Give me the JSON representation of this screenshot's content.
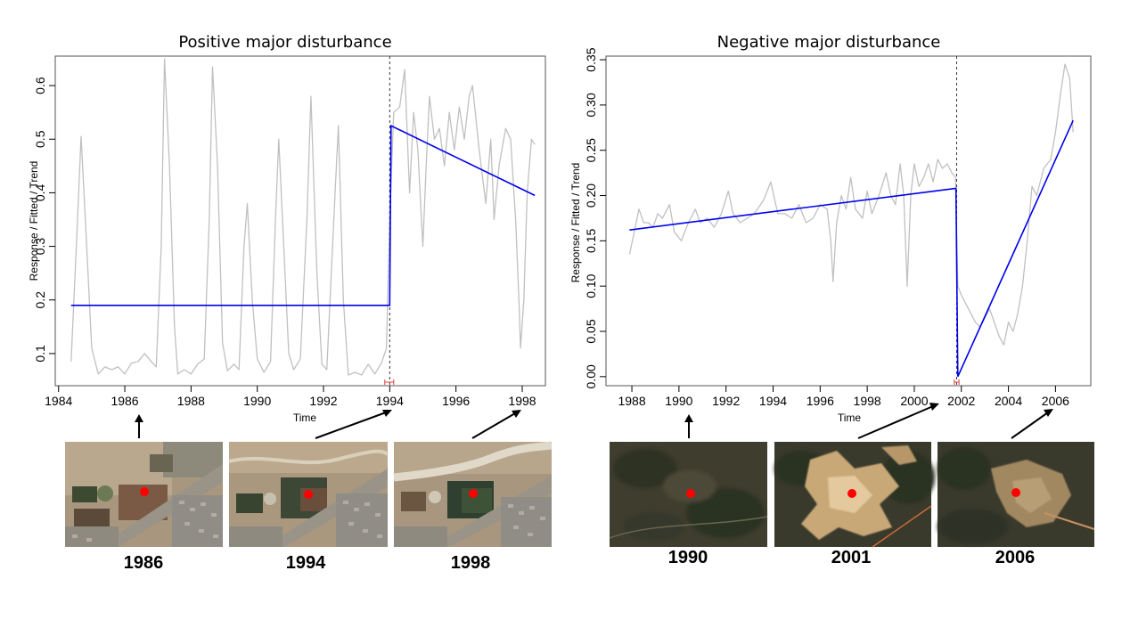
{
  "chart_data": [
    {
      "type": "line",
      "title": "Positive major disturbance",
      "xlabel": "Time",
      "ylabel": "Response / Fitted / Trend",
      "xlim": [
        1983.9,
        1998.7
      ],
      "ylim": [
        0.04,
        0.655
      ],
      "xticks": [
        1984,
        1986,
        1988,
        1990,
        1992,
        1994,
        1996,
        1998
      ],
      "yticks": [
        0.1,
        0.2,
        0.3,
        0.4,
        0.5,
        0.6
      ],
      "ytick_labels": [
        "0.1",
        "0.2",
        "0.3",
        "0.4",
        "0.5",
        "0.6"
      ],
      "breakpoint": 1994.0,
      "breakpoint_ci": [
        1993.85,
        1994.12
      ],
      "series": [
        {
          "role": "response",
          "color": "#c0c0c0",
          "points": [
            [
              1984.38,
              0.085
            ],
            [
              1984.55,
              0.32
            ],
            [
              1984.68,
              0.505
            ],
            [
              1984.85,
              0.3
            ],
            [
              1985.0,
              0.11
            ],
            [
              1985.2,
              0.062
            ],
            [
              1985.4,
              0.075
            ],
            [
              1985.6,
              0.07
            ],
            [
              1985.8,
              0.075
            ],
            [
              1986.0,
              0.062
            ],
            [
              1986.2,
              0.082
            ],
            [
              1986.4,
              0.085
            ],
            [
              1986.6,
              0.1
            ],
            [
              1986.8,
              0.085
            ],
            [
              1986.95,
              0.075
            ],
            [
              1987.1,
              0.3
            ],
            [
              1987.2,
              0.65
            ],
            [
              1987.35,
              0.45
            ],
            [
              1987.5,
              0.15
            ],
            [
              1987.6,
              0.062
            ],
            [
              1987.8,
              0.07
            ],
            [
              1988.0,
              0.062
            ],
            [
              1988.2,
              0.08
            ],
            [
              1988.4,
              0.09
            ],
            [
              1988.55,
              0.35
            ],
            [
              1988.65,
              0.635
            ],
            [
              1988.8,
              0.45
            ],
            [
              1988.95,
              0.12
            ],
            [
              1989.1,
              0.068
            ],
            [
              1989.3,
              0.08
            ],
            [
              1989.45,
              0.07
            ],
            [
              1989.6,
              0.3
            ],
            [
              1989.7,
              0.38
            ],
            [
              1989.85,
              0.2
            ],
            [
              1990.0,
              0.09
            ],
            [
              1990.2,
              0.065
            ],
            [
              1990.4,
              0.085
            ],
            [
              1990.55,
              0.35
            ],
            [
              1990.65,
              0.5
            ],
            [
              1990.8,
              0.3
            ],
            [
              1990.95,
              0.1
            ],
            [
              1991.1,
              0.07
            ],
            [
              1991.3,
              0.09
            ],
            [
              1991.5,
              0.35
            ],
            [
              1991.62,
              0.58
            ],
            [
              1991.8,
              0.25
            ],
            [
              1991.95,
              0.08
            ],
            [
              1992.1,
              0.07
            ],
            [
              1992.35,
              0.4
            ],
            [
              1992.45,
              0.525
            ],
            [
              1992.6,
              0.2
            ],
            [
              1992.75,
              0.06
            ],
            [
              1992.95,
              0.065
            ],
            [
              1993.15,
              0.06
            ],
            [
              1993.35,
              0.08
            ],
            [
              1993.55,
              0.062
            ],
            [
              1993.75,
              0.082
            ],
            [
              1993.9,
              0.11
            ],
            [
              1994.0,
              0.35
            ],
            [
              1994.12,
              0.55
            ],
            [
              1994.3,
              0.56
            ],
            [
              1994.45,
              0.63
            ],
            [
              1994.6,
              0.4
            ],
            [
              1994.72,
              0.55
            ],
            [
              1994.85,
              0.48
            ],
            [
              1995.0,
              0.3
            ],
            [
              1995.1,
              0.45
            ],
            [
              1995.2,
              0.58
            ],
            [
              1995.35,
              0.5
            ],
            [
              1995.5,
              0.52
            ],
            [
              1995.65,
              0.45
            ],
            [
              1995.8,
              0.55
            ],
            [
              1995.95,
              0.48
            ],
            [
              1996.1,
              0.56
            ],
            [
              1996.25,
              0.5
            ],
            [
              1996.4,
              0.58
            ],
            [
              1996.5,
              0.6
            ],
            [
              1996.7,
              0.48
            ],
            [
              1996.9,
              0.38
            ],
            [
              1997.05,
              0.5
            ],
            [
              1997.15,
              0.35
            ],
            [
              1997.3,
              0.45
            ],
            [
              1997.5,
              0.52
            ],
            [
              1997.65,
              0.5
            ],
            [
              1997.8,
              0.35
            ],
            [
              1997.9,
              0.2
            ],
            [
              1997.95,
              0.11
            ],
            [
              1998.05,
              0.2
            ],
            [
              1998.15,
              0.4
            ],
            [
              1998.28,
              0.5
            ],
            [
              1998.38,
              0.49
            ]
          ]
        },
        {
          "role": "fitted",
          "color": "#0000ee",
          "points": [
            [
              1984.38,
              0.19
            ],
            [
              1994.0,
              0.19
            ],
            [
              1994.04,
              0.525
            ],
            [
              1998.38,
              0.395
            ]
          ]
        }
      ]
    },
    {
      "type": "line",
      "title": "Negative major disturbance",
      "xlabel": "Time",
      "ylabel": "Response / Fitted / Trend",
      "xlim": [
        1986.9,
        2007.5
      ],
      "ylim": [
        -0.01,
        0.354
      ],
      "xticks": [
        1988,
        1990,
        1992,
        1994,
        1996,
        1998,
        2000,
        2002,
        2004,
        2006
      ],
      "yticks": [
        0.0,
        0.05,
        0.1,
        0.15,
        0.2,
        0.25,
        0.3,
        0.35
      ],
      "ytick_labels": [
        "0.00",
        "0.05",
        "0.10",
        "0.15",
        "0.20",
        "0.25",
        "0.30",
        "0.35"
      ],
      "breakpoint": 2001.8,
      "breakpoint_ci": [
        2001.7,
        2001.9
      ],
      "series": [
        {
          "role": "response",
          "color": "#c0c0c0",
          "points": [
            [
              1987.9,
              0.135
            ],
            [
              1988.1,
              0.16
            ],
            [
              1988.3,
              0.185
            ],
            [
              1988.5,
              0.17
            ],
            [
              1988.7,
              0.17
            ],
            [
              1988.9,
              0.165
            ],
            [
              1989.1,
              0.18
            ],
            [
              1989.3,
              0.175
            ],
            [
              1989.6,
              0.19
            ],
            [
              1989.8,
              0.16
            ],
            [
              1990.1,
              0.15
            ],
            [
              1990.4,
              0.17
            ],
            [
              1990.7,
              0.185
            ],
            [
              1990.9,
              0.17
            ],
            [
              1991.2,
              0.175
            ],
            [
              1991.5,
              0.165
            ],
            [
              1991.8,
              0.18
            ],
            [
              1992.1,
              0.205
            ],
            [
              1992.3,
              0.18
            ],
            [
              1992.6,
              0.17
            ],
            [
              1992.9,
              0.175
            ],
            [
              1993.2,
              0.18
            ],
            [
              1993.6,
              0.195
            ],
            [
              1993.9,
              0.215
            ],
            [
              1994.2,
              0.18
            ],
            [
              1994.5,
              0.18
            ],
            [
              1994.8,
              0.175
            ],
            [
              1995.1,
              0.19
            ],
            [
              1995.4,
              0.17
            ],
            [
              1995.7,
              0.175
            ],
            [
              1996.0,
              0.19
            ],
            [
              1996.3,
              0.185
            ],
            [
              1996.45,
              0.15
            ],
            [
              1996.55,
              0.105
            ],
            [
              1996.7,
              0.17
            ],
            [
              1996.9,
              0.2
            ],
            [
              1997.1,
              0.185
            ],
            [
              1997.3,
              0.22
            ],
            [
              1997.5,
              0.185
            ],
            [
              1997.8,
              0.175
            ],
            [
              1998.0,
              0.205
            ],
            [
              1998.2,
              0.18
            ],
            [
              1998.5,
              0.2
            ],
            [
              1998.8,
              0.225
            ],
            [
              1999.0,
              0.2
            ],
            [
              1999.2,
              0.19
            ],
            [
              1999.4,
              0.235
            ],
            [
              1999.55,
              0.2
            ],
            [
              1999.7,
              0.1
            ],
            [
              1999.85,
              0.2
            ],
            [
              2000.0,
              0.235
            ],
            [
              2000.2,
              0.21
            ],
            [
              2000.4,
              0.22
            ],
            [
              2000.6,
              0.235
            ],
            [
              2000.8,
              0.215
            ],
            [
              2001.0,
              0.24
            ],
            [
              2001.2,
              0.23
            ],
            [
              2001.4,
              0.235
            ],
            [
              2001.6,
              0.225
            ],
            [
              2001.75,
              0.22
            ],
            [
              2001.85,
              0.1
            ],
            [
              2002.0,
              0.09
            ],
            [
              2002.2,
              0.08
            ],
            [
              2002.4,
              0.07
            ],
            [
              2002.6,
              0.06
            ],
            [
              2002.8,
              0.055
            ],
            [
              2003.0,
              0.065
            ],
            [
              2003.2,
              0.075
            ],
            [
              2003.4,
              0.06
            ],
            [
              2003.6,
              0.045
            ],
            [
              2003.8,
              0.035
            ],
            [
              2004.0,
              0.06
            ],
            [
              2004.2,
              0.05
            ],
            [
              2004.4,
              0.07
            ],
            [
              2004.6,
              0.1
            ],
            [
              2004.8,
              0.15
            ],
            [
              2005.0,
              0.21
            ],
            [
              2005.2,
              0.2
            ],
            [
              2005.5,
              0.23
            ],
            [
              2005.8,
              0.24
            ],
            [
              2006.0,
              0.27
            ],
            [
              2006.2,
              0.31
            ],
            [
              2006.4,
              0.345
            ],
            [
              2006.6,
              0.33
            ],
            [
              2006.75,
              0.27
            ]
          ]
        },
        {
          "role": "fitted",
          "color": "#0000ee",
          "points": [
            [
              1987.9,
              0.162
            ],
            [
              2001.77,
              0.208
            ],
            [
              2001.85,
              0.0
            ],
            [
              2006.75,
              0.283
            ]
          ]
        }
      ]
    }
  ],
  "image_strips": [
    {
      "years": [
        "1986",
        "1994",
        "1998"
      ],
      "scene": "urban"
    },
    {
      "years": [
        "1990",
        "2001",
        "2006"
      ],
      "scene": "forest"
    }
  ],
  "colors": {
    "response": "#c0c0c0",
    "fitted": "#0000ee",
    "breakpoint_line": "#333333",
    "ci_bar": "#e04040",
    "marker_dot": "#ff0000"
  }
}
